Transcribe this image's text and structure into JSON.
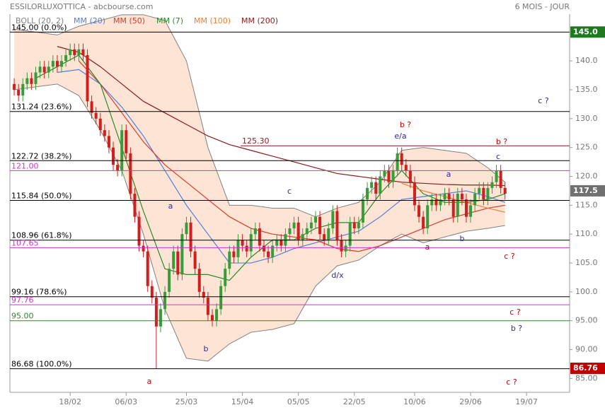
{
  "chart_data": {
    "type": "candlestick",
    "title": "ESSILORLUXOTTICA - abcbourse.com",
    "subtitle": "6 MOIS - JOUR",
    "xlim": [
      -1,
      129
    ],
    "xticks": [
      {
        "value": 13,
        "label": "18/02"
      },
      {
        "value": 26,
        "label": "06/03"
      },
      {
        "value": 40,
        "label": "25/03"
      },
      {
        "value": 53,
        "label": "15/04"
      },
      {
        "value": 66,
        "label": "05/05"
      },
      {
        "value": 79,
        "label": "22/05"
      },
      {
        "value": 93,
        "label": "10/06"
      },
      {
        "value": 106,
        "label": "29/06"
      },
      {
        "value": 119,
        "label": "19/07"
      }
    ],
    "ylim": [
      82.6,
      148.1
    ],
    "yticks": [
      {
        "value": 85,
        "label": "85.00"
      },
      {
        "value": 90,
        "label": "90.00"
      },
      {
        "value": 95,
        "label": "95.00"
      },
      {
        "value": 100,
        "label": "100.0"
      },
      {
        "value": 105,
        "label": "105.0"
      },
      {
        "value": 110,
        "label": "110.0"
      },
      {
        "value": 115,
        "label": "115.0"
      },
      {
        "value": 120,
        "label": "120.0"
      },
      {
        "value": 125,
        "label": "125.0"
      },
      {
        "value": 130,
        "label": "130.0"
      },
      {
        "value": 135,
        "label": "135.0"
      },
      {
        "value": 140,
        "label": "140.0"
      }
    ],
    "rise_color": "#3a9b3a",
    "fall_color": "#d01f1f",
    "candles": {
      "open": [
        136,
        135,
        134,
        136,
        137,
        136,
        138,
        139,
        138,
        139,
        140,
        139,
        140,
        141,
        142,
        141,
        142,
        141,
        133,
        131,
        130,
        128,
        127,
        125,
        122,
        121,
        128,
        124,
        117,
        113,
        108,
        107,
        101,
        99,
        94,
        97,
        100,
        104,
        107,
        103,
        110,
        112,
        107,
        104,
        100,
        99,
        96,
        95,
        97,
        101,
        104,
        107,
        106,
        109,
        108,
        107,
        110,
        111,
        108,
        107,
        106,
        108,
        109,
        108,
        110,
        111,
        112,
        109,
        110,
        111,
        112,
        113,
        110,
        109,
        111,
        114,
        109,
        107,
        108,
        112,
        111,
        112,
        116,
        118,
        119,
        117,
        120,
        121,
        119,
        121,
        124,
        122,
        121,
        119,
        115,
        113,
        111,
        115,
        116,
        115,
        116,
        117,
        116,
        113,
        117,
        116,
        113,
        115,
        117,
        118,
        116,
        118,
        119,
        121,
        118
      ],
      "high": [
        137,
        136,
        137,
        138,
        138,
        139,
        140,
        140,
        140,
        141,
        141,
        141,
        142,
        143,
        143,
        143,
        143,
        142,
        134,
        132,
        131,
        129,
        128,
        126,
        123,
        129,
        129,
        125,
        118,
        114,
        109,
        108,
        102,
        100,
        98,
        101,
        105,
        108,
        108,
        111,
        113,
        113,
        108,
        105,
        101,
        100,
        97,
        98,
        102,
        105,
        108,
        108,
        110,
        110,
        109,
        111,
        112,
        112,
        109,
        108,
        109,
        110,
        110,
        111,
        112,
        113,
        113,
        111,
        112,
        113,
        114,
        114,
        111,
        112,
        115,
        115,
        110,
        109,
        113,
        113,
        113,
        117,
        119,
        120,
        120,
        121,
        122,
        122,
        122,
        125,
        125,
        123,
        122,
        120,
        116,
        114,
        116,
        117,
        117,
        117,
        118,
        118,
        117,
        118,
        118,
        117,
        116,
        118,
        119,
        119,
        119,
        120,
        122,
        122,
        119
      ],
      "low": [
        134,
        133,
        133,
        135,
        135,
        135,
        137,
        137,
        137,
        138,
        138,
        138,
        139,
        140,
        140,
        140,
        140,
        132,
        130,
        129,
        127,
        126,
        124,
        121,
        120,
        120,
        123,
        116,
        112,
        107,
        106,
        100,
        98,
        86.7,
        93,
        96,
        99,
        103,
        102,
        102,
        109,
        106,
        103,
        99,
        98,
        95,
        94,
        94,
        96,
        100,
        103,
        105,
        105,
        107,
        106,
        106,
        109,
        107,
        106,
        105,
        105,
        107,
        107,
        107,
        109,
        110,
        108,
        108,
        109,
        110,
        111,
        109,
        108,
        108,
        110,
        108,
        106,
        106,
        107,
        110,
        110,
        111,
        115,
        117,
        116,
        116,
        119,
        118,
        118,
        120,
        121,
        120,
        118,
        114,
        112,
        110,
        110,
        114,
        114,
        114,
        115,
        115,
        112,
        112,
        115,
        112,
        112,
        114,
        116,
        115,
        115,
        117,
        118,
        117,
        116
      ],
      "close": [
        135,
        134,
        136,
        137,
        136,
        138,
        139,
        138,
        139,
        140,
        139,
        140,
        141,
        142,
        141,
        142,
        141,
        133,
        131,
        130,
        128,
        127,
        125,
        122,
        121,
        128,
        124,
        117,
        113,
        108,
        107,
        101,
        99,
        94,
        97,
        100,
        104,
        107,
        103,
        110,
        112,
        107,
        104,
        100,
        99,
        96,
        95,
        97,
        101,
        104,
        107,
        106,
        109,
        108,
        107,
        110,
        111,
        108,
        107,
        106,
        108,
        109,
        108,
        110,
        111,
        112,
        109,
        110,
        111,
        112,
        113,
        110,
        109,
        111,
        114,
        109,
        107,
        108,
        112,
        111,
        112,
        116,
        118,
        119,
        117,
        120,
        121,
        119,
        121,
        124,
        122,
        121,
        119,
        115,
        113,
        111,
        115,
        116,
        115,
        116,
        117,
        116,
        113,
        117,
        116,
        113,
        115,
        117,
        118,
        116,
        118,
        119,
        121,
        118,
        117
      ]
    },
    "indicator_x": [
      0,
      5,
      10,
      15,
      20,
      25,
      30,
      35,
      40,
      45,
      50,
      55,
      60,
      65,
      70,
      75,
      80,
      85,
      90,
      95,
      100,
      105,
      110,
      114
    ],
    "band": {
      "name": "BOLL (20, 2)",
      "color": "#808080",
      "fill": "#fde4d4",
      "upper": [
        145.5,
        145,
        144.5,
        146,
        147,
        148,
        148,
        147,
        140,
        125,
        115,
        115,
        114.5,
        114.5,
        113,
        114.5,
        115.5,
        119,
        124.5,
        125,
        124.5,
        124,
        121.5,
        119
      ],
      "lower": [
        135,
        135.5,
        136,
        134,
        128,
        121,
        110,
        97,
        88.5,
        88,
        91,
        93,
        93.5,
        94.5,
        101,
        104.5,
        105.5,
        108,
        110,
        108.5,
        109.5,
        110.5,
        111,
        111.5
      ]
    },
    "series": [
      {
        "name": "MM (20)",
        "color": "#4f7fe0",
        "values": [
          null,
          null,
          138,
          138.5,
          136,
          132,
          127,
          121,
          115,
          110,
          105,
          105,
          106,
          107.5,
          108.5,
          109.5,
          110.5,
          113,
          116,
          116.5,
          117,
          117.5,
          116.5,
          115.5
        ]
      },
      {
        "name": "MM (50)",
        "color": "#e03a2a",
        "values": [
          null,
          null,
          null,
          140,
          136,
          131,
          126,
          122,
          119,
          116,
          113,
          111,
          110,
          109.5,
          109,
          107.5,
          107,
          108,
          109.5,
          111,
          112.5,
          113.5,
          114.5,
          115
        ]
      },
      {
        "name": "MM (7)",
        "color": "#2a8a2a",
        "values": [
          null,
          137,
          139,
          141,
          136,
          125,
          114,
          104,
          103,
          103,
          102,
          106,
          109,
          109,
          111,
          112,
          112,
          117,
          121,
          117,
          115.5,
          115.5,
          116,
          117
        ]
      },
      {
        "name": "MM (100)",
        "color": "#f08030",
        "values": [
          null,
          null,
          null,
          null,
          null,
          null,
          null,
          null,
          null,
          null,
          null,
          null,
          null,
          null,
          null,
          null,
          null,
          null,
          118.8,
          117.5,
          116.5,
          115.5,
          114.5,
          113.8
        ]
      },
      {
        "name": "MM (200)",
        "color": "#8b1a1a",
        "values": [
          null,
          null,
          142.5,
          141.5,
          139,
          136,
          133,
          131,
          129,
          127,
          125.5,
          124.5,
          123.5,
          122.5,
          121.5,
          120.5,
          120,
          119.5,
          119,
          118.8,
          118.6,
          118.5,
          118.5,
          118.4
        ]
      }
    ],
    "levels": [
      {
        "value": 145.0,
        "label": "145.00 (0.0%)",
        "color": "#000000"
      },
      {
        "value": 131.24,
        "label": "131.24 (23.6%)",
        "color": "#000000"
      },
      {
        "value": 125.3,
        "label": "125.30",
        "color": "#8b1a1a"
      },
      {
        "value": 122.72,
        "label": "122.72 (38.2%)",
        "color": "#000000"
      },
      {
        "value": 121.0,
        "label": "121.00",
        "color": "#cc33cc"
      },
      {
        "value": 115.84,
        "label": "115.84 (50.0%)",
        "color": "#000000"
      },
      {
        "value": 108.96,
        "label": "108.96 (61.8%)",
        "color": "#000000"
      },
      {
        "value": 107.65,
        "label": "107.65",
        "color": "#cc33cc"
      },
      {
        "value": 99.16,
        "label": "99.16 (78.6%)",
        "color": "#000000"
      },
      {
        "value": 97.76,
        "label": "97.76",
        "color": "#cc33cc"
      },
      {
        "value": 95.0,
        "label": "95.00",
        "color": "#2a8a2a"
      },
      {
        "value": 86.68,
        "label": "86.68 (100.0%)",
        "color": "#000000"
      }
    ],
    "price_badges": [
      {
        "value": 145.0,
        "label": "145.0",
        "color": "#1f7a1f"
      },
      {
        "value": 117.5,
        "label": "117.5",
        "color": "#707070"
      },
      {
        "value": 86.76,
        "label": "86.76",
        "color": "#c00000"
      }
    ],
    "annotations": [
      {
        "text": "a",
        "color": "#c00000"
      },
      {
        "text": "b",
        "color": "#2a2a9a"
      },
      {
        "text": "a",
        "color": "#2a2a9a"
      },
      {
        "text": "c",
        "color": "#2a2a9a"
      },
      {
        "text": "d/x",
        "color": "#2a2a9a"
      },
      {
        "text": "b ?",
        "color": "#c00000"
      },
      {
        "text": "e/a",
        "color": "#2a2a9a"
      },
      {
        "text": "a",
        "color": "#2a2a9a"
      },
      {
        "text": "a",
        "color": "#c00000"
      },
      {
        "text": "b",
        "color": "#2a2a9a"
      },
      {
        "text": "c",
        "color": "#2a2a9a"
      },
      {
        "text": "b ?",
        "color": "#c00000"
      },
      {
        "text": "c ?",
        "color": "#2a2a9a"
      },
      {
        "text": "c ?",
        "color": "#c00000"
      },
      {
        "text": "c ?",
        "color": "#c00000"
      },
      {
        "text": "b ?",
        "color": "#2a2a9a"
      },
      {
        "text": "c ?",
        "color": "#c00000"
      }
    ]
  }
}
